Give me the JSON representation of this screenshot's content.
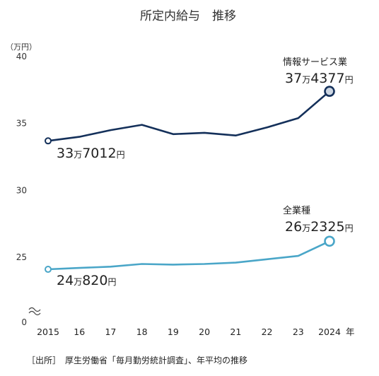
{
  "chart_data": {
    "type": "line",
    "title": "所定内給与　推移",
    "ylabel": "（万円）",
    "x": [
      "2015",
      "16",
      "17",
      "18",
      "19",
      "20",
      "21",
      "22",
      "23",
      "2024"
    ],
    "x_unit": "年",
    "ylim": [
      0,
      40
    ],
    "yticks": [
      "0",
      "25",
      "30",
      "35",
      "40"
    ],
    "axis_break": true,
    "grid": false,
    "series": [
      {
        "name": "情報サービス業",
        "color": "#14305a",
        "values": [
          33.7,
          34.0,
          34.5,
          34.9,
          34.2,
          34.3,
          34.1,
          34.7,
          35.4,
          37.4
        ],
        "first_label": {
          "big1": "33",
          "small": "万",
          "big2": "7012",
          "unit": "円"
        },
        "last_label": {
          "big1": "37",
          "small": "万",
          "big2": "4377",
          "unit": "円"
        }
      },
      {
        "name": "全業種",
        "color": "#4aa6c8",
        "values": [
          24.1,
          24.2,
          24.3,
          24.5,
          24.45,
          24.5,
          24.6,
          24.85,
          25.1,
          26.2
        ],
        "first_label": {
          "big1": "24",
          "small": "万",
          "big2": "820",
          "unit": "円"
        },
        "last_label": {
          "big1": "26",
          "small": "万",
          "big2": "2325",
          "unit": "円"
        }
      }
    ]
  },
  "source": "［出所］　厚生労働省「毎月勤労統計調査」、年平均の推移"
}
